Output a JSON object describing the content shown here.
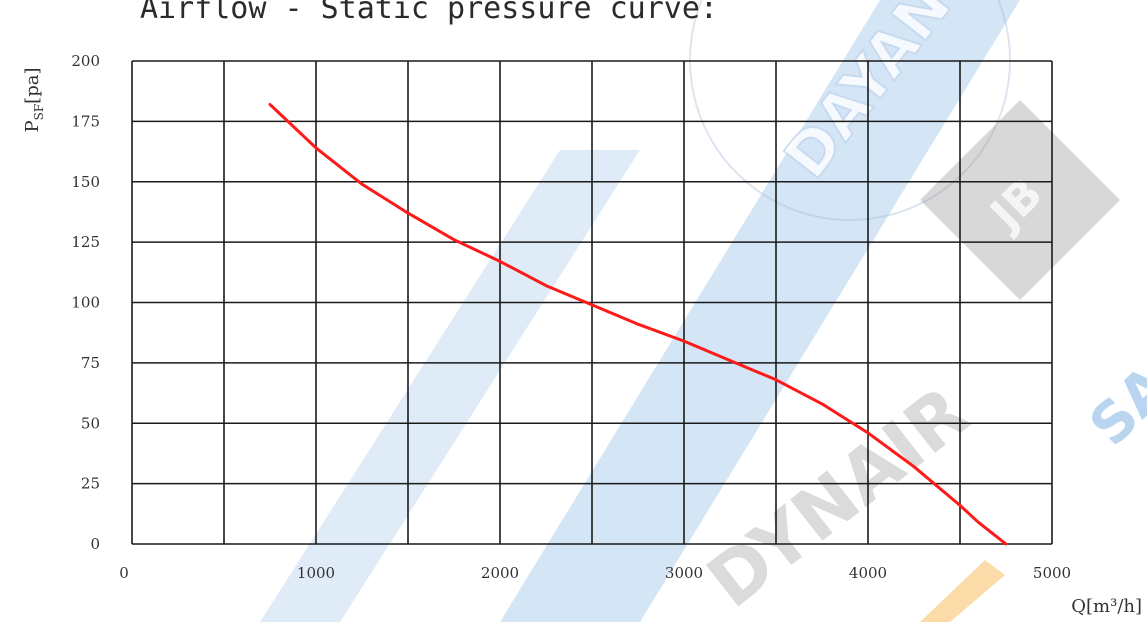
{
  "chart_data": {
    "type": "line",
    "title": "Airflow - Static pressure curve:",
    "xlabel": "Q[m³/h]",
    "ylabel_main": "P",
    "ylabel_sub": "SF",
    "ylabel_unit": "[pa]",
    "xlim": [
      0,
      5000
    ],
    "ylim": [
      0,
      200
    ],
    "x_ticks": [
      0,
      1000,
      2000,
      3000,
      4000,
      5000
    ],
    "y_ticks": [
      0,
      25,
      50,
      75,
      100,
      125,
      150,
      175,
      200
    ],
    "grid": true,
    "legend": "none",
    "series": [
      {
        "color": "#ff1a1a",
        "points": [
          [
            750,
            182
          ],
          [
            1000,
            164
          ],
          [
            1250,
            149
          ],
          [
            1500,
            137
          ],
          [
            1750,
            126
          ],
          [
            2000,
            117
          ],
          [
            2250,
            107
          ],
          [
            2500,
            99
          ],
          [
            2750,
            91
          ],
          [
            3000,
            84
          ],
          [
            3250,
            76
          ],
          [
            3500,
            68
          ],
          [
            3750,
            58
          ],
          [
            4000,
            46
          ],
          [
            4250,
            32
          ],
          [
            4500,
            16
          ],
          [
            4600,
            9
          ],
          [
            4700,
            3
          ],
          [
            4750,
            0
          ]
        ]
      }
    ]
  },
  "watermarks": [
    "DAYAN",
    "DYNAIR",
    "JB",
    "SA"
  ]
}
